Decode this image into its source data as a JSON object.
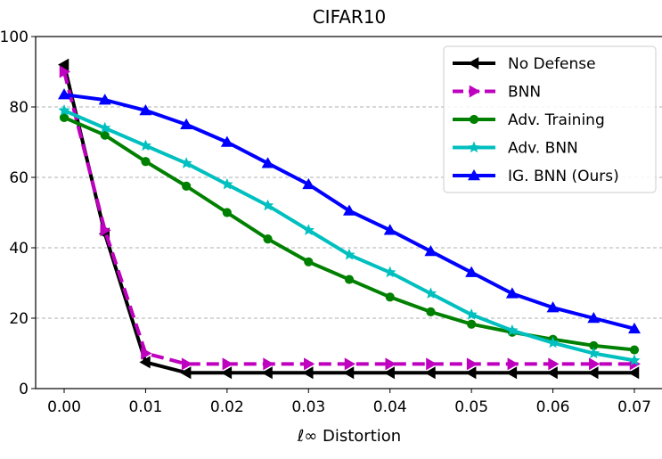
{
  "chart_data": {
    "type": "line",
    "title": "CIFAR10",
    "xlabel": "ℓ∞ Distortion",
    "ylabel": "",
    "xlim": [
      -0.0035,
      0.0735
    ],
    "ylim": [
      0,
      100
    ],
    "x_ticks": [
      0.0,
      0.01,
      0.02,
      0.03,
      0.04,
      0.05,
      0.06,
      0.07
    ],
    "x_tick_labels": [
      "0.00",
      "0.01",
      "0.02",
      "0.03",
      "0.04",
      "0.05",
      "0.06",
      "0.07"
    ],
    "y_ticks": [
      0,
      20,
      40,
      60,
      80,
      100
    ],
    "y_tick_labels": [
      "0",
      "20",
      "40",
      "60",
      "80",
      "100"
    ],
    "grid": "horizontal-dashed",
    "legend_position": "top-right",
    "x": [
      0.0,
      0.005,
      0.01,
      0.015,
      0.02,
      0.025,
      0.03,
      0.035,
      0.04,
      0.045,
      0.05,
      0.055,
      0.06,
      0.065,
      0.07
    ],
    "series": [
      {
        "name": "No Defense",
        "color": "#000000",
        "marker": "triangle-left",
        "dash": "solid",
        "values": [
          92,
          44,
          7.5,
          4.5,
          4.5,
          4.5,
          4.5,
          4.5,
          4.5,
          4.5,
          4.5,
          4.5,
          4.5,
          4.5,
          4.5
        ]
      },
      {
        "name": "BNN",
        "color": "#bf00bf",
        "marker": "triangle-right",
        "dash": "dashed",
        "values": [
          90,
          45,
          10,
          7,
          7,
          7,
          7,
          7,
          7,
          7,
          7,
          7,
          7,
          7,
          7
        ]
      },
      {
        "name": "Adv. Training",
        "color": "#008000",
        "marker": "circle",
        "dash": "solid",
        "values": [
          77,
          72,
          64.5,
          57.5,
          50,
          42.5,
          36,
          31,
          26,
          21.8,
          18.3,
          16,
          14,
          12.2,
          11
        ]
      },
      {
        "name": "Adv. BNN",
        "color": "#00bfbf",
        "marker": "star",
        "dash": "solid",
        "values": [
          79,
          74,
          69,
          64,
          58,
          52,
          45,
          38,
          33,
          27,
          21,
          16.5,
          13,
          10,
          8
        ]
      },
      {
        "name": "IG. BNN (Ours)",
        "color": "#0000ff",
        "marker": "triangle-up",
        "dash": "solid",
        "values": [
          83.5,
          82,
          79,
          75,
          70,
          64,
          58,
          50.5,
          45,
          39,
          33,
          27,
          23,
          20,
          17
        ]
      }
    ]
  }
}
